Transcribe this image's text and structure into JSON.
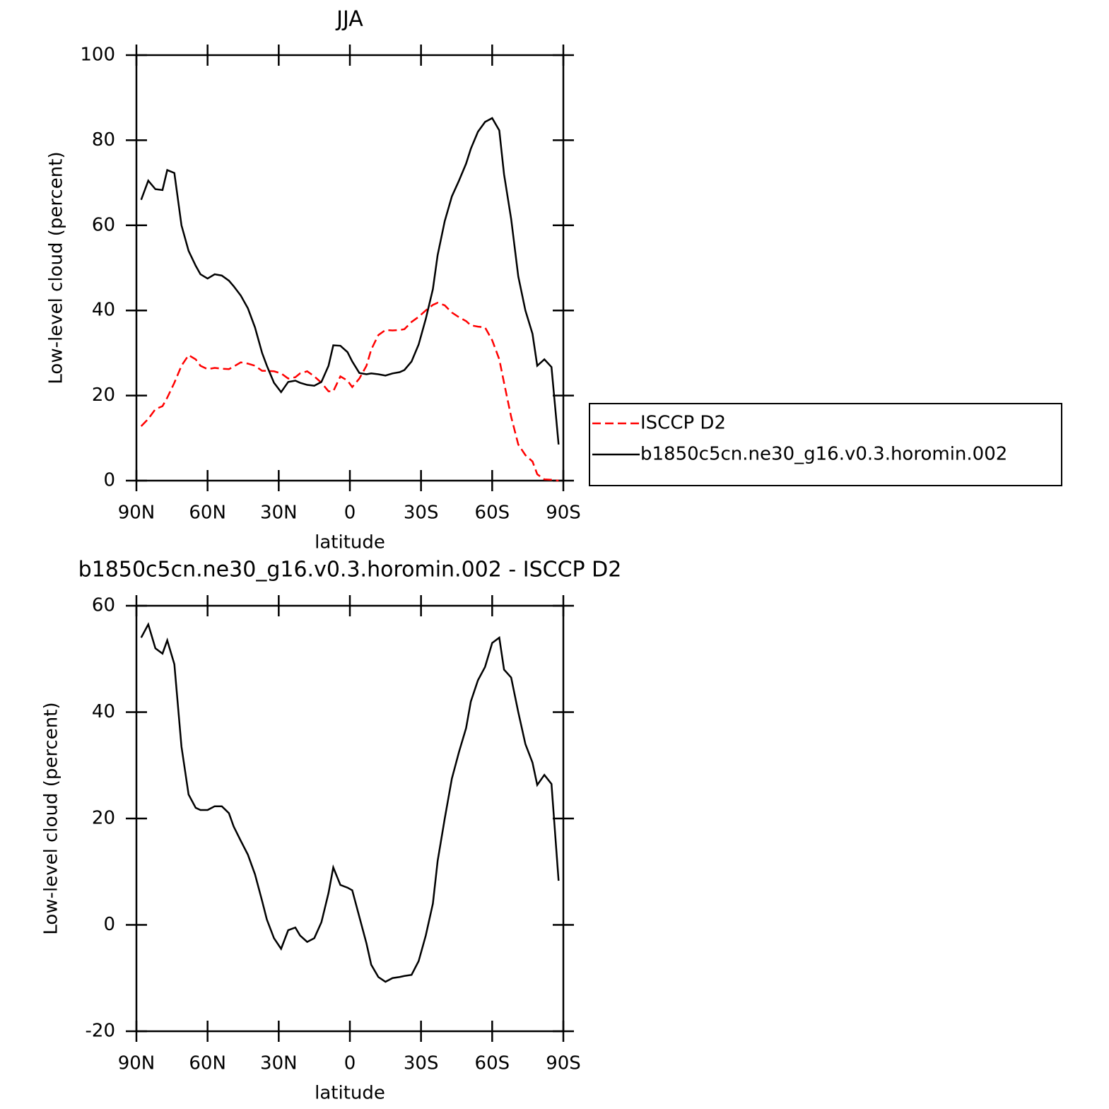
{
  "chart_data": [
    {
      "type": "line",
      "title": "JJA",
      "xlabel": "latitude",
      "ylabel": "Low-level cloud (percent)",
      "x": [
        88,
        85,
        82,
        79,
        77,
        74,
        71,
        68,
        65,
        63,
        60,
        57,
        54,
        51,
        49,
        46,
        43,
        40,
        37,
        35,
        32,
        29,
        26,
        23,
        21,
        18,
        15,
        12,
        9,
        7,
        4,
        1,
        -1,
        -4,
        -7,
        -9,
        -12,
        -15,
        -18,
        -21,
        -23,
        -26,
        -29,
        -32,
        -35,
        -37,
        -40,
        -43,
        -46,
        -49,
        -51,
        -54,
        -57,
        -60,
        -63,
        -65,
        -68,
        -71,
        -74,
        -77,
        -79,
        -82,
        -85,
        -88
      ],
      "series": [
        {
          "name": "ISCCP D2",
          "color": "#ff0000",
          "linestyle": "dashed",
          "values": [
            12.8,
            14.5,
            16.8,
            17.5,
            19.5,
            23,
            27,
            29.5,
            28.5,
            27,
            26.2,
            26.5,
            26.3,
            26.2,
            26.8,
            27.8,
            27.5,
            27,
            25.8,
            25.8,
            25.7,
            25.2,
            24,
            24.3,
            25.2,
            25.7,
            24.5,
            23,
            21,
            21,
            24.5,
            23.5,
            22,
            24,
            27,
            30.8,
            34.2,
            35.4,
            35.3,
            35.4,
            35.6,
            37.3,
            38.5,
            40,
            41.3,
            41.8,
            41.2,
            39.5,
            38.4,
            37.5,
            36.5,
            36.2,
            36,
            33,
            28.5,
            23,
            15,
            8.5,
            6,
            4.5,
            1.5,
            0.3,
            0.2,
            0
          ]
        },
        {
          "name": "b1850c5cn.ne30_g16.v0.3.horomin.002",
          "color": "#000000",
          "linestyle": "solid",
          "values": [
            66,
            70.5,
            68.5,
            68.3,
            73,
            72.3,
            60,
            54,
            50.5,
            48.5,
            47.5,
            48.5,
            48.2,
            47,
            45.7,
            43.5,
            40.5,
            36,
            30,
            27,
            23,
            20.8,
            23.2,
            23.5,
            23,
            22.5,
            22.3,
            23.2,
            27,
            31.8,
            31.7,
            30.2,
            28,
            25.3,
            25,
            25.2,
            25,
            24.7,
            25.2,
            25.5,
            26,
            28,
            32,
            38,
            45,
            53,
            61,
            66.8,
            70.5,
            74.5,
            78,
            82,
            84.3,
            85.2,
            82.3,
            72,
            61.5,
            48,
            40,
            34.5,
            27,
            28.5,
            26.7,
            8.5
          ]
        }
      ],
      "xlim": [
        90,
        -90
      ],
      "xticks": [
        {
          "value": 90,
          "label": "90N"
        },
        {
          "value": 60,
          "label": "60N"
        },
        {
          "value": 30,
          "label": "30N"
        },
        0,
        {
          "value": -30,
          "label": "30S"
        },
        {
          "value": -60,
          "label": "60S"
        },
        {
          "value": -90,
          "label": "90S"
        }
      ],
      "ylim": [
        0,
        100
      ],
      "yticks": [
        0,
        20,
        40,
        60,
        80,
        100
      ],
      "legend": "right"
    },
    {
      "type": "line",
      "title": "b1850c5cn.ne30_g16.v0.3.horomin.002 - ISCCP D2",
      "xlabel": "latitude",
      "ylabel": "Low-level cloud (percent)",
      "x": [
        88,
        85,
        82,
        79,
        77,
        74,
        71,
        68,
        65,
        63,
        60,
        57,
        54,
        51,
        49,
        46,
        43,
        40,
        37,
        35,
        32,
        29,
        26,
        23,
        21,
        18,
        15,
        12,
        9,
        7,
        4,
        1,
        -1,
        -4,
        -7,
        -9,
        -12,
        -15,
        -18,
        -21,
        -23,
        -26,
        -29,
        -32,
        -35,
        -37,
        -40,
        -43,
        -46,
        -49,
        -51,
        -54,
        -57,
        -60,
        -63,
        -65,
        -68,
        -71,
        -74,
        -77,
        -79,
        -82,
        -85,
        -88
      ],
      "color": "#000000",
      "values": [
        54,
        56.5,
        52,
        51,
        53.5,
        49,
        33.5,
        24.5,
        22,
        21.6,
        21.6,
        22.3,
        22.3,
        21,
        18.5,
        15.8,
        13.2,
        9.5,
        4.5,
        1,
        -2.5,
        -4.5,
        -1,
        -0.5,
        -2,
        -3.2,
        -2.5,
        0.5,
        6,
        10.8,
        7.5,
        7,
        6.5,
        1.5,
        -3.5,
        -7.5,
        -9.8,
        -10.7,
        -10,
        -9.8,
        -9.6,
        -9.4,
        -6.8,
        -2,
        4,
        12,
        20,
        27.5,
        32.5,
        37,
        42,
        46,
        48.5,
        53,
        54,
        48,
        46.5,
        40,
        34,
        30.5,
        26.3,
        28.2,
        26.5,
        8.3
      ],
      "xlim": [
        90,
        -90
      ],
      "xticks": [
        {
          "value": 90,
          "label": "90N"
        },
        {
          "value": 60,
          "label": "60N"
        },
        {
          "value": 30,
          "label": "30N"
        },
        0,
        {
          "value": -30,
          "label": "30S"
        },
        {
          "value": -60,
          "label": "60S"
        },
        {
          "value": -90,
          "label": "90S"
        }
      ],
      "ylim": [
        -20,
        60
      ],
      "yticks": [
        -20,
        0,
        20,
        40,
        60
      ]
    }
  ]
}
